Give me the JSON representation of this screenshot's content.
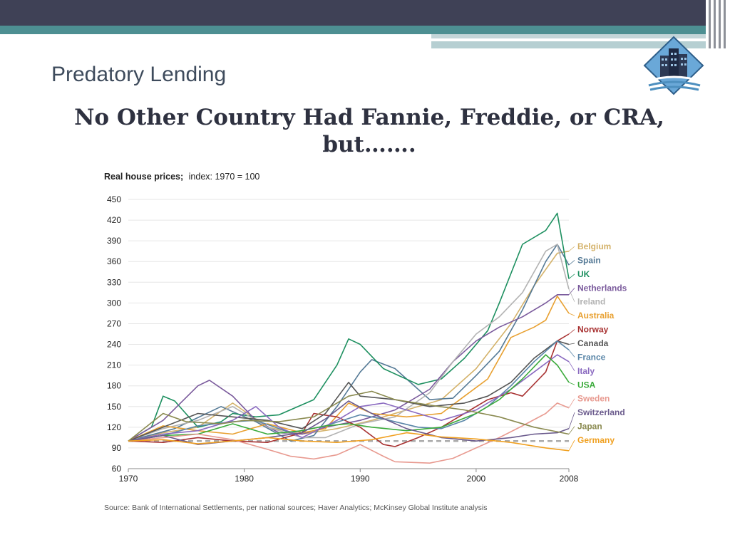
{
  "slide": {
    "title": "Predatory Lending",
    "headline_line1": "No Other Country Had Fannie, Freddie, or CRA,",
    "headline_line2": "but……."
  },
  "colors": {
    "topbar": "#3f4156",
    "accent_teal": "#4d8f92"
  },
  "chart_data": {
    "type": "line",
    "title": "Real house prices;",
    "subtitle": "index: 1970 = 100",
    "source": "Source: Bank of International Settlements, per national sources; Haver Analytics; McKinsey Global Institute analysis",
    "xlabel": "",
    "ylabel": "",
    "xlim": [
      1970,
      2008
    ],
    "ylim": [
      60,
      450
    ],
    "x_ticks": [
      "1970",
      "1980",
      "1990",
      "2000",
      "2008"
    ],
    "x_tick_values": [
      1970,
      1980,
      1990,
      2000,
      2008
    ],
    "y_ticks": [
      60,
      90,
      120,
      150,
      180,
      210,
      240,
      270,
      300,
      330,
      360,
      390,
      420,
      450
    ],
    "baseline": 100,
    "series": [
      {
        "name": "Belgium",
        "color": "#d4b26a",
        "points": [
          [
            1970,
            100
          ],
          [
            1973,
            112
          ],
          [
            1976,
            120
          ],
          [
            1979,
            155
          ],
          [
            1982,
            120
          ],
          [
            1985,
            110
          ],
          [
            1988,
            118
          ],
          [
            1991,
            130
          ],
          [
            1994,
            145
          ],
          [
            1997,
            160
          ],
          [
            2000,
            205
          ],
          [
            2003,
            270
          ],
          [
            2005,
            325
          ],
          [
            2007,
            372
          ],
          [
            2008,
            375
          ]
        ]
      },
      {
        "name": "Spain",
        "color": "#557a96",
        "points": [
          [
            1970,
            100
          ],
          [
            1974,
            118
          ],
          [
            1978,
            150
          ],
          [
            1981,
            128
          ],
          [
            1984,
            100
          ],
          [
            1986,
            108
          ],
          [
            1988,
            150
          ],
          [
            1990,
            200
          ],
          [
            1991,
            218
          ],
          [
            1993,
            205
          ],
          [
            1996,
            160
          ],
          [
            1998,
            162
          ],
          [
            2000,
            195
          ],
          [
            2002,
            230
          ],
          [
            2004,
            290
          ],
          [
            2006,
            360
          ],
          [
            2007,
            385
          ],
          [
            2008,
            355
          ]
        ]
      },
      {
        "name": "UK",
        "color": "#1e9060",
        "points": [
          [
            1970,
            100
          ],
          [
            1972,
            120
          ],
          [
            1973,
            165
          ],
          [
            1974,
            158
          ],
          [
            1976,
            120
          ],
          [
            1978,
            128
          ],
          [
            1979,
            140
          ],
          [
            1981,
            135
          ],
          [
            1983,
            138
          ],
          [
            1986,
            160
          ],
          [
            1988,
            210
          ],
          [
            1989,
            248
          ],
          [
            1990,
            240
          ],
          [
            1992,
            205
          ],
          [
            1995,
            182
          ],
          [
            1997,
            190
          ],
          [
            1999,
            220
          ],
          [
            2001,
            260
          ],
          [
            2002,
            300
          ],
          [
            2004,
            385
          ],
          [
            2006,
            405
          ],
          [
            2007,
            430
          ],
          [
            2008,
            335
          ]
        ]
      },
      {
        "name": "Netherlands",
        "color": "#7a5a9c",
        "points": [
          [
            1970,
            100
          ],
          [
            1973,
            130
          ],
          [
            1976,
            180
          ],
          [
            1977,
            188
          ],
          [
            1979,
            165
          ],
          [
            1981,
            130
          ],
          [
            1983,
            112
          ],
          [
            1985,
            110
          ],
          [
            1987,
            120
          ],
          [
            1990,
            130
          ],
          [
            1993,
            145
          ],
          [
            1996,
            175
          ],
          [
            1998,
            215
          ],
          [
            2000,
            245
          ],
          [
            2002,
            265
          ],
          [
            2004,
            280
          ],
          [
            2006,
            300
          ],
          [
            2007,
            312
          ],
          [
            2008,
            312
          ]
        ]
      },
      {
        "name": "Ireland",
        "color": "#b3b3b3",
        "points": [
          [
            1970,
            100
          ],
          [
            1973,
            118
          ],
          [
            1976,
            130
          ],
          [
            1979,
            150
          ],
          [
            1982,
            120
          ],
          [
            1985,
            105
          ],
          [
            1987,
            105
          ],
          [
            1990,
            125
          ],
          [
            1993,
            135
          ],
          [
            1996,
            170
          ],
          [
            1998,
            215
          ],
          [
            2000,
            255
          ],
          [
            2002,
            280
          ],
          [
            2004,
            315
          ],
          [
            2006,
            375
          ],
          [
            2007,
            385
          ],
          [
            2008,
            320
          ]
        ]
      },
      {
        "name": "Australia",
        "color": "#e8a030",
        "points": [
          [
            1970,
            100
          ],
          [
            1973,
            122
          ],
          [
            1976,
            115
          ],
          [
            1979,
            110
          ],
          [
            1982,
            125
          ],
          [
            1985,
            112
          ],
          [
            1987,
            118
          ],
          [
            1989,
            155
          ],
          [
            1991,
            140
          ],
          [
            1994,
            135
          ],
          [
            1997,
            140
          ],
          [
            1999,
            165
          ],
          [
            2001,
            190
          ],
          [
            2003,
            250
          ],
          [
            2005,
            265
          ],
          [
            2006,
            275
          ],
          [
            2007,
            310
          ],
          [
            2008,
            285
          ]
        ]
      },
      {
        "name": "Norway",
        "color": "#a83232",
        "points": [
          [
            1970,
            100
          ],
          [
            1973,
            98
          ],
          [
            1976,
            105
          ],
          [
            1979,
            100
          ],
          [
            1982,
            98
          ],
          [
            1985,
            112
          ],
          [
            1986,
            140
          ],
          [
            1988,
            135
          ],
          [
            1990,
            120
          ],
          [
            1992,
            95
          ],
          [
            1993,
            92
          ],
          [
            1995,
            105
          ],
          [
            1997,
            120
          ],
          [
            1999,
            140
          ],
          [
            2001,
            160
          ],
          [
            2003,
            170
          ],
          [
            2004,
            165
          ],
          [
            2006,
            200
          ],
          [
            2007,
            245
          ],
          [
            2008,
            255
          ]
        ]
      },
      {
        "name": "Canada",
        "color": "#555555",
        "points": [
          [
            1970,
            100
          ],
          [
            1973,
            120
          ],
          [
            1976,
            140
          ],
          [
            1979,
            135
          ],
          [
            1982,
            130
          ],
          [
            1985,
            118
          ],
          [
            1987,
            140
          ],
          [
            1989,
            185
          ],
          [
            1990,
            165
          ],
          [
            1993,
            160
          ],
          [
            1996,
            150
          ],
          [
            1999,
            155
          ],
          [
            2001,
            165
          ],
          [
            2003,
            185
          ],
          [
            2005,
            220
          ],
          [
            2007,
            245
          ],
          [
            2008,
            240
          ]
        ]
      },
      {
        "name": "France",
        "color": "#5a86a8",
        "points": [
          [
            1970,
            100
          ],
          [
            1973,
            108
          ],
          [
            1976,
            122
          ],
          [
            1979,
            128
          ],
          [
            1981,
            130
          ],
          [
            1984,
            112
          ],
          [
            1987,
            122
          ],
          [
            1990,
            138
          ],
          [
            1992,
            132
          ],
          [
            1995,
            120
          ],
          [
            1997,
            118
          ],
          [
            1999,
            130
          ],
          [
            2001,
            150
          ],
          [
            2003,
            180
          ],
          [
            2005,
            215
          ],
          [
            2007,
            245
          ],
          [
            2008,
            232
          ]
        ]
      },
      {
        "name": "Italy",
        "color": "#8a6ac0",
        "points": [
          [
            1970,
            100
          ],
          [
            1973,
            110
          ],
          [
            1976,
            115
          ],
          [
            1979,
            130
          ],
          [
            1981,
            150
          ],
          [
            1983,
            120
          ],
          [
            1985,
            105
          ],
          [
            1988,
            130
          ],
          [
            1990,
            150
          ],
          [
            1992,
            155
          ],
          [
            1995,
            140
          ],
          [
            1997,
            130
          ],
          [
            2000,
            145
          ],
          [
            2003,
            175
          ],
          [
            2005,
            200
          ],
          [
            2007,
            225
          ],
          [
            2008,
            215
          ]
        ]
      },
      {
        "name": "USA",
        "color": "#3aaa3a",
        "points": [
          [
            1970,
            100
          ],
          [
            1973,
            108
          ],
          [
            1976,
            110
          ],
          [
            1979,
            125
          ],
          [
            1982,
            110
          ],
          [
            1985,
            115
          ],
          [
            1987,
            122
          ],
          [
            1989,
            125
          ],
          [
            1991,
            120
          ],
          [
            1994,
            115
          ],
          [
            1997,
            120
          ],
          [
            2000,
            140
          ],
          [
            2002,
            160
          ],
          [
            2004,
            190
          ],
          [
            2006,
            225
          ],
          [
            2007,
            210
          ],
          [
            2008,
            185
          ]
        ]
      },
      {
        "name": "Sweden",
        "color": "#e89a90",
        "points": [
          [
            1970,
            100
          ],
          [
            1973,
            105
          ],
          [
            1976,
            110
          ],
          [
            1979,
            102
          ],
          [
            1982,
            88
          ],
          [
            1984,
            78
          ],
          [
            1986,
            74
          ],
          [
            1988,
            80
          ],
          [
            1990,
            95
          ],
          [
            1992,
            78
          ],
          [
            1993,
            70
          ],
          [
            1996,
            68
          ],
          [
            1998,
            75
          ],
          [
            2000,
            90
          ],
          [
            2002,
            105
          ],
          [
            2004,
            122
          ],
          [
            2006,
            140
          ],
          [
            2007,
            155
          ],
          [
            2008,
            148
          ]
        ]
      },
      {
        "name": "Switzerland",
        "color": "#6a5a8c",
        "points": [
          [
            1970,
            100
          ],
          [
            1973,
            108
          ],
          [
            1976,
            95
          ],
          [
            1979,
            100
          ],
          [
            1982,
            105
          ],
          [
            1985,
            112
          ],
          [
            1987,
            132
          ],
          [
            1989,
            158
          ],
          [
            1991,
            140
          ],
          [
            1994,
            118
          ],
          [
            1997,
            105
          ],
          [
            2000,
            100
          ],
          [
            2003,
            105
          ],
          [
            2005,
            110
          ],
          [
            2007,
            112
          ],
          [
            2008,
            118
          ]
        ]
      },
      {
        "name": "Japan",
        "color": "#8a8a50",
        "points": [
          [
            1970,
            100
          ],
          [
            1973,
            140
          ],
          [
            1975,
            128
          ],
          [
            1978,
            125
          ],
          [
            1980,
            130
          ],
          [
            1983,
            128
          ],
          [
            1986,
            135
          ],
          [
            1989,
            165
          ],
          [
            1991,
            172
          ],
          [
            1993,
            160
          ],
          [
            1996,
            152
          ],
          [
            1999,
            145
          ],
          [
            2002,
            135
          ],
          [
            2005,
            120
          ],
          [
            2008,
            110
          ]
        ]
      },
      {
        "name": "Germany",
        "color": "#f0a020",
        "points": [
          [
            1970,
            100
          ],
          [
            1973,
            102
          ],
          [
            1976,
            96
          ],
          [
            1979,
            100
          ],
          [
            1982,
            105
          ],
          [
            1985,
            100
          ],
          [
            1988,
            98
          ],
          [
            1991,
            102
          ],
          [
            1994,
            112
          ],
          [
            1997,
            106
          ],
          [
            2000,
            103
          ],
          [
            2003,
            98
          ],
          [
            2006,
            90
          ],
          [
            2008,
            86
          ]
        ]
      }
    ]
  }
}
